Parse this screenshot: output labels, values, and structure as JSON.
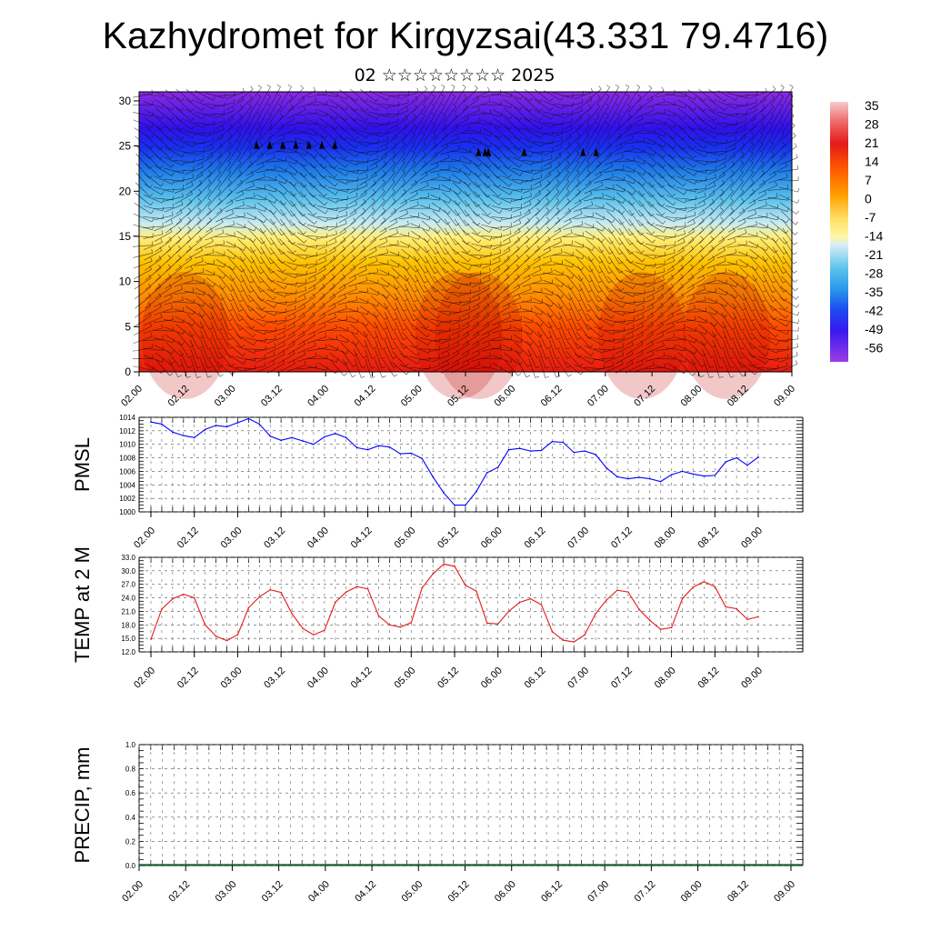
{
  "header": {
    "title": "Kazhydromet for Kirgyzsai(43.331 79.4716)",
    "subtitle": "02 ☆☆☆☆☆☆☆☆ 2025"
  },
  "time_ticks": [
    "02.00",
    "02.12",
    "03.00",
    "03.12",
    "04.00",
    "04.12",
    "05.00",
    "05.12",
    "06.00",
    "06.12",
    "07.00",
    "07.12",
    "08.00",
    "08.12",
    "09.00"
  ],
  "chart_data": [
    {
      "type": "heatmap",
      "name": "vertical-cross-section",
      "description": "Temperature (°C) vs height (km) over time with wind barbs",
      "x_ticks": [
        "02.00",
        "02.12",
        "03.00",
        "03.12",
        "04.00",
        "04.12",
        "05.00",
        "05.12",
        "06.00",
        "06.12",
        "07.00",
        "07.12",
        "08.00",
        "08.12",
        "09.00"
      ],
      "y_ticks": [
        0,
        5,
        10,
        15,
        20,
        25,
        30
      ],
      "ylim": [
        0,
        31
      ],
      "colorbar_labels": [
        "35",
        "28",
        "21",
        "14",
        "7",
        "0",
        "-7",
        "-14",
        "-21",
        "-28",
        "-35",
        "-42",
        "-49",
        "-56"
      ],
      "colorbar_range": [
        -60,
        38
      ],
      "colormap": [
        "#f1c6c6",
        "#e41a1a",
        "#ff4a00",
        "#ff8a00",
        "#ffc000",
        "#fff26a",
        "#bfe6f2",
        "#2aa5e8",
        "#1060f0",
        "#2a10f2",
        "#8a2be2"
      ]
    },
    {
      "type": "line",
      "name": "PMSL",
      "ylabel": "PMSL",
      "color": "#0000ff",
      "ylim": [
        1000,
        1014
      ],
      "y_ticks": [
        "1000",
        "1002",
        "1004",
        "1006",
        "1008",
        "1010",
        "1012",
        "1014"
      ],
      "x_ticks": [
        "02.00",
        "02.12",
        "03.00",
        "03.12",
        "04.00",
        "04.12",
        "05.00",
        "05.12",
        "06.00",
        "06.12",
        "07.00",
        "07.12",
        "08.00",
        "08.12",
        "09.00"
      ],
      "x": [
        0,
        3,
        6,
        9,
        12,
        15,
        18,
        21,
        24,
        27,
        30,
        33,
        36,
        39,
        42,
        45,
        48,
        51,
        54,
        57,
        60,
        63,
        66,
        69,
        72,
        75,
        78,
        81,
        84,
        87,
        90,
        93,
        96,
        99,
        102,
        105,
        108,
        111,
        114,
        117,
        120,
        123,
        126,
        129,
        132,
        135,
        138,
        141,
        144,
        147,
        150,
        153,
        156,
        159,
        162,
        165,
        168
      ],
      "values": [
        1013.3,
        1013.0,
        1011.8,
        1011.3,
        1011.0,
        1012.2,
        1012.8,
        1012.6,
        1013.2,
        1013.8,
        1013.0,
        1011.2,
        1010.6,
        1011.0,
        1010.5,
        1010.0,
        1011.1,
        1011.6,
        1011.0,
        1009.5,
        1009.2,
        1009.8,
        1009.6,
        1008.6,
        1008.7,
        1007.9,
        1005.2,
        1002.8,
        1001.0,
        1001.0,
        1003.0,
        1005.8,
        1006.6,
        1009.2,
        1009.4,
        1009.0,
        1009.1,
        1010.4,
        1010.3,
        1008.8,
        1009.0,
        1008.5,
        1006.5,
        1005.2,
        1004.9,
        1005.1,
        1004.9,
        1004.5,
        1005.5,
        1006.0,
        1005.6,
        1005.3,
        1005.4,
        1007.4,
        1008.0,
        1006.9,
        1008.1
      ]
    },
    {
      "type": "line",
      "name": "TEMP at 2 M",
      "ylabel": "TEMP at 2 M",
      "color": "#e31a1c",
      "ylim": [
        12,
        33
      ],
      "y_ticks": [
        "12.0",
        "15.0",
        "18.0",
        "21.0",
        "24.0",
        "27.0",
        "30.0",
        "33.0"
      ],
      "x_ticks": [
        "02.00",
        "02.12",
        "03.00",
        "03.12",
        "04.00",
        "04.12",
        "05.00",
        "05.12",
        "06.00",
        "06.12",
        "07.00",
        "07.12",
        "08.00",
        "08.12",
        "09.00"
      ],
      "x": [
        0,
        3,
        6,
        9,
        12,
        15,
        18,
        21,
        24,
        27,
        30,
        33,
        36,
        39,
        42,
        45,
        48,
        51,
        54,
        57,
        60,
        63,
        66,
        69,
        72,
        75,
        78,
        81,
        84,
        87,
        90,
        93,
        96,
        99,
        102,
        105,
        108,
        111,
        114,
        117,
        120,
        123,
        126,
        129,
        132,
        135,
        138,
        141,
        144,
        147,
        150,
        153,
        156,
        159,
        162,
        165,
        168
      ],
      "values": [
        14.8,
        21.5,
        23.8,
        24.8,
        24.0,
        18.0,
        15.5,
        14.5,
        15.8,
        21.8,
        24.2,
        25.8,
        25.2,
        20.5,
        17.2,
        15.8,
        16.8,
        23.0,
        25.3,
        26.5,
        26.0,
        20.0,
        18.0,
        17.5,
        18.5,
        26.2,
        29.3,
        31.5,
        31.0,
        26.8,
        25.5,
        18.4,
        18.2,
        21.0,
        23.0,
        23.8,
        22.5,
        16.5,
        14.6,
        14.2,
        15.8,
        20.5,
        23.5,
        25.7,
        25.3,
        21.5,
        19.0,
        17.0,
        17.4,
        23.8,
        26.4,
        27.6,
        26.5,
        22.0,
        21.6,
        19.2,
        19.8
      ]
    },
    {
      "type": "bar",
      "name": "PRECIP, mm",
      "ylabel": "PRECIP, mm",
      "color": "#1a7a3a",
      "ylim": [
        0.0,
        1.0
      ],
      "y_ticks": [
        "0.0",
        "0.2",
        "0.4",
        "0.6",
        "0.8",
        "1.0"
      ],
      "x_ticks": [
        "02.00",
        "02.12",
        "03.00",
        "03.12",
        "04.00",
        "04.12",
        "05.00",
        "05.12",
        "06.00",
        "06.12",
        "07.00",
        "07.12",
        "08.00",
        "08.12",
        "09.00"
      ],
      "values": [
        0,
        0,
        0,
        0,
        0,
        0,
        0,
        0,
        0,
        0,
        0,
        0,
        0,
        0,
        0,
        0,
        0,
        0,
        0,
        0,
        0,
        0,
        0,
        0,
        0,
        0,
        0,
        0,
        0,
        0,
        0,
        0,
        0,
        0,
        0,
        0,
        0,
        0,
        0,
        0,
        0,
        0,
        0,
        0,
        0,
        0,
        0,
        0,
        0,
        0,
        0,
        0,
        0,
        0,
        0,
        0,
        0
      ]
    }
  ]
}
